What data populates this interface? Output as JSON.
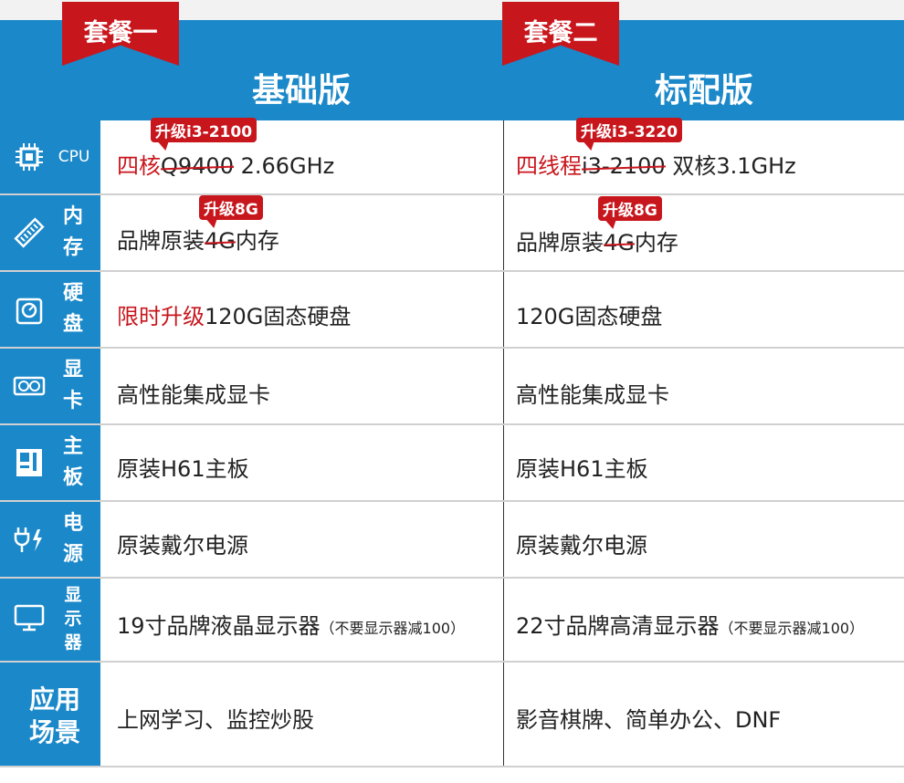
{
  "plans": [
    {
      "ribbon": "套餐一",
      "title": "基础版"
    },
    {
      "ribbon": "套餐二",
      "title": "标配版"
    }
  ],
  "rows": {
    "cpu": {
      "label": "CPU",
      "icon": "cpu-icon",
      "p1": {
        "badge": "升级i3-2100",
        "red": "四核",
        "strike": "Q9400",
        "rest": " 2.66GHz"
      },
      "p2": {
        "badge": "升级i3-3220",
        "red": "四线程",
        "strike": "i3-2100",
        "rest": " 双核3.1GHz"
      }
    },
    "memory": {
      "label": [
        "内",
        "存"
      ],
      "icon": "ram-icon",
      "p1": {
        "badge": "升级8G",
        "pre": "品牌原装",
        "strike": "4G",
        "rest": "内存"
      },
      "p2": {
        "badge": "升级8G",
        "pre": "品牌原装",
        "strike": "4G",
        "rest": "内存"
      }
    },
    "disk": {
      "label": [
        "硬",
        "盘"
      ],
      "icon": "hard-disk-icon",
      "p1": {
        "red": "限时升级",
        "rest": "120G固态硬盘"
      },
      "p2": {
        "rest": "120G固态硬盘"
      }
    },
    "gpu": {
      "label": [
        "显",
        "卡"
      ],
      "icon": "graphics-card-icon",
      "p1": "高性能集成显卡",
      "p2": "高性能集成显卡"
    },
    "board": {
      "label": [
        "主",
        "板"
      ],
      "icon": "motherboard-icon",
      "p1": "原装H61主板",
      "p2": "原装H61主板"
    },
    "power": {
      "label": [
        "电",
        "源"
      ],
      "icon": "power-plug-icon",
      "p1": "原装戴尔电源",
      "p2": "原装戴尔电源"
    },
    "monitor": {
      "label": [
        "显",
        "示",
        "器"
      ],
      "icon": "monitor-icon",
      "p1": {
        "main": "19寸品牌液晶显示器",
        "note": "（不要显示器减100）"
      },
      "p2": {
        "main": "22寸品牌高清显示器",
        "note": "（不要显示器减100）"
      }
    },
    "usage": {
      "label": [
        "应用",
        "场景"
      ],
      "p1": "上网学习、监控炒股",
      "p2": "影音棋牌、简单办公、DNF"
    }
  },
  "colors": {
    "blue": "#1a88c9",
    "red": "#c8161d"
  }
}
